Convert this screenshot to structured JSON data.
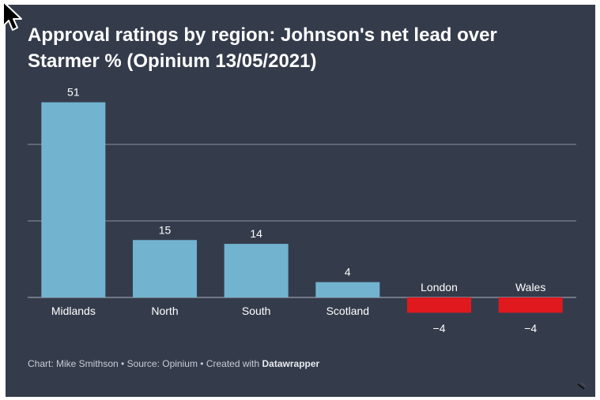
{
  "chart_data": {
    "type": "bar",
    "title": "Approval ratings by region: Johnson's net lead over Starmer % (Opinium 13/05/2021)",
    "categories": [
      "Midlands",
      "North",
      "South",
      "Scotland",
      "London",
      "Wales"
    ],
    "values": [
      51,
      15,
      14,
      4,
      -4,
      -4
    ],
    "value_labels": [
      "51",
      "15",
      "14",
      "4",
      "−4",
      "−4"
    ],
    "xlabel": "",
    "ylabel": "",
    "ylim": [
      -4,
      51
    ],
    "gridlines": [
      0,
      20,
      40
    ],
    "colors": {
      "positive": "#72b3d0",
      "negative": "#e0191e"
    }
  },
  "footer": {
    "credit": "Chart: Mike Smithson • Source: Opinium • Created with ",
    "brand": "Datawrapper"
  },
  "theme": {
    "background": "#343c4c",
    "text": "#ffffff",
    "grid": "#8a919c"
  }
}
